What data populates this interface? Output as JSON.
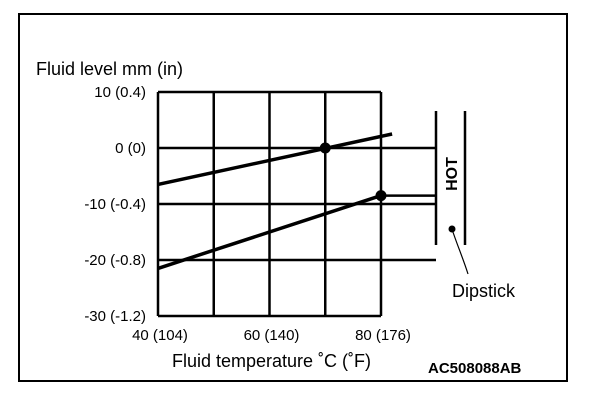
{
  "chart_data": {
    "type": "line",
    "title": "Fluid level mm (in)",
    "xlabel": "Fluid temperature ˚C (˚F)",
    "xlim": [
      40,
      80
    ],
    "ylim": [
      -30,
      10
    ],
    "grid": true,
    "x_ticks": [
      {
        "value": 40,
        "label": "40 (104)"
      },
      {
        "value": 50,
        "label": ""
      },
      {
        "value": 60,
        "label": "60 (140)"
      },
      {
        "value": 70,
        "label": ""
      },
      {
        "value": 80,
        "label": "80 (176)"
      }
    ],
    "y_ticks": [
      {
        "value": 10,
        "label": "10 (0.4)"
      },
      {
        "value": 0,
        "label": "0 (0)"
      },
      {
        "value": -10,
        "label": "-10 (-0.4)"
      },
      {
        "value": -20,
        "label": "-20 (-0.8)"
      },
      {
        "value": -30,
        "label": "-30 (-1.2)"
      }
    ],
    "series": [
      {
        "x": [
          40,
          82
        ],
        "y": [
          -6.5,
          2.5
        ]
      },
      {
        "x": [
          40,
          80
        ],
        "y": [
          -21.5,
          -8.5
        ]
      }
    ],
    "markers": [
      {
        "x": 70,
        "y": 0
      },
      {
        "x": 80,
        "y": -8.5
      }
    ],
    "dipstick": {
      "zone_label": "HOT",
      "callout": "Dipstick"
    },
    "figure_code": "AC508088AB"
  }
}
